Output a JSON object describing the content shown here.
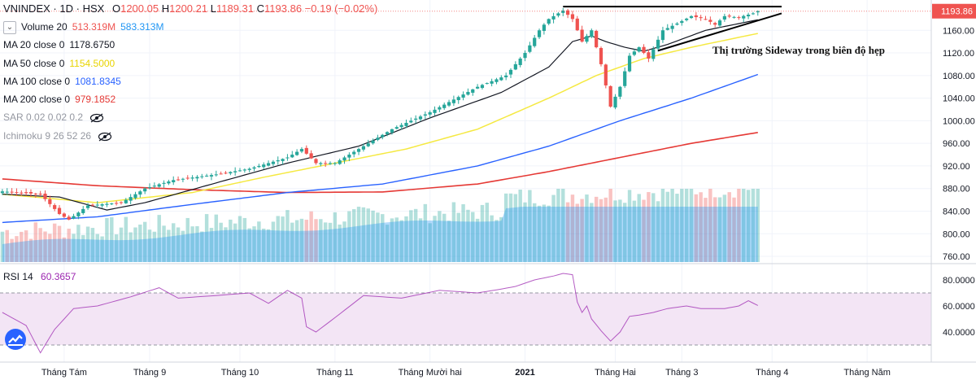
{
  "header": {
    "symbol": "VNINDEX",
    "sep1": "·",
    "interval": "1D",
    "sep2": "·",
    "exchange": "HSX",
    "open_label": "O",
    "open": "1200.05",
    "high_label": "H",
    "high": "1200.21",
    "low_label": "L",
    "low": "1189.31",
    "close_label": "C",
    "close": "1193.86",
    "change": "−0.19 (−0.02%)"
  },
  "indicators": [
    {
      "name": "Volume 20",
      "values": [
        "513.319M",
        "583.313M"
      ],
      "colors": [
        "#ef5350",
        "#2196f3"
      ]
    },
    {
      "name": "MA 20 close 0",
      "values": [
        "1178.6750"
      ],
      "colors": [
        "#131722"
      ]
    },
    {
      "name": "MA 50 close 0",
      "values": [
        "1154.5000"
      ],
      "colors": [
        "#f5e942"
      ]
    },
    {
      "name": "MA 100 close 0",
      "values": [
        "1081.8345"
      ],
      "colors": [
        "#2962ff"
      ]
    },
    {
      "name": "MA 200 close 0",
      "values": [
        "979.1852"
      ],
      "colors": [
        "#e53935"
      ]
    },
    {
      "name": "SAR 0.02 0.02 0.2",
      "values": [],
      "colors": []
    },
    {
      "name": "Ichimoku 9 26 52 26",
      "values": [],
      "colors": []
    }
  ],
  "rsi_legend": {
    "name": "RSI 14",
    "value": "60.3657"
  },
  "annotation": "Thị trường Sideway trong biên độ hẹp",
  "colors": {
    "up": "#26a69a",
    "down": "#ef5350",
    "ma20": "#131722",
    "ma50": "#f5e942",
    "ma100": "#2962ff",
    "ma200": "#e53935",
    "rsi": "#9c27b0",
    "rsi_band": "#f3e5f5"
  },
  "chart_data": {
    "type": "candlestick",
    "title": "VNINDEX · 1D · HSX",
    "price_axis": {
      "ticks": [
        760,
        800,
        840,
        880,
        920,
        960,
        1000,
        1040,
        1080,
        1120,
        1160
      ],
      "labels": [
        "760.00",
        "800.00",
        "840.00",
        "880.00",
        "920.00",
        "960.00",
        "1000.00",
        "1040.00",
        "1080.00",
        "1120.00",
        "1160.00"
      ],
      "last_price": 1193.86,
      "last_price_label": "1193.86",
      "range": [
        750,
        1205
      ]
    },
    "rsi_axis": {
      "ticks": [
        40,
        60,
        80
      ],
      "labels": [
        "40.0000",
        "60.0000",
        "80.0000"
      ],
      "band": [
        30,
        70
      ],
      "range": [
        20,
        90
      ]
    },
    "x_labels": [
      "Tháng Tám",
      "Tháng 9",
      "Tháng 10",
      "Tháng 11",
      "Tháng Mười hai",
      "2021",
      "Tháng Hai",
      "Tháng 3",
      "Tháng 4",
      "Tháng Năm"
    ],
    "x_label_bar_index": [
      13,
      31,
      50,
      70,
      90,
      110,
      129,
      143,
      162,
      182
    ],
    "bars_in_view": 196,
    "candles_shown": 160,
    "price_path_nodes": [
      [
        0,
        875
      ],
      [
        8,
        870
      ],
      [
        12,
        835
      ],
      [
        14,
        825
      ],
      [
        18,
        850
      ],
      [
        25,
        855
      ],
      [
        30,
        880
      ],
      [
        36,
        895
      ],
      [
        45,
        905
      ],
      [
        52,
        915
      ],
      [
        60,
        935
      ],
      [
        63,
        950
      ],
      [
        66,
        925
      ],
      [
        70,
        925
      ],
      [
        75,
        950
      ],
      [
        82,
        985
      ],
      [
        90,
        1015
      ],
      [
        100,
        1060
      ],
      [
        106,
        1080
      ],
      [
        110,
        1120
      ],
      [
        113,
        1160
      ],
      [
        115,
        1180
      ],
      [
        118,
        1195
      ],
      [
        120,
        1180
      ],
      [
        122,
        1140
      ],
      [
        124,
        1160
      ],
      [
        126,
        1100
      ],
      [
        128,
        1025
      ],
      [
        130,
        1060
      ],
      [
        132,
        1115
      ],
      [
        134,
        1130
      ],
      [
        136,
        1110
      ],
      [
        139,
        1160
      ],
      [
        142,
        1172
      ],
      [
        145,
        1185
      ],
      [
        148,
        1180
      ],
      [
        150,
        1170
      ],
      [
        152,
        1185
      ],
      [
        155,
        1183
      ],
      [
        158,
        1190
      ],
      [
        159,
        1193.86
      ]
    ],
    "ma_nodes": {
      "ma20": [
        [
          0,
          870
        ],
        [
          12,
          865
        ],
        [
          22,
          842
        ],
        [
          30,
          855
        ],
        [
          45,
          890
        ],
        [
          60,
          925
        ],
        [
          75,
          955
        ],
        [
          90,
          1005
        ],
        [
          105,
          1050
        ],
        [
          115,
          1095
        ],
        [
          120,
          1140
        ],
        [
          124,
          1150
        ],
        [
          127,
          1140
        ],
        [
          131,
          1130
        ],
        [
          135,
          1123
        ],
        [
          140,
          1135
        ],
        [
          148,
          1160
        ],
        [
          159,
          1178.675
        ]
      ],
      "ma50": [
        [
          0,
          870
        ],
        [
          20,
          855
        ],
        [
          40,
          873
        ],
        [
          55,
          900
        ],
        [
          70,
          925
        ],
        [
          85,
          950
        ],
        [
          100,
          985
        ],
        [
          115,
          1040
        ],
        [
          125,
          1080
        ],
        [
          135,
          1110
        ],
        [
          145,
          1130
        ],
        [
          159,
          1154.5
        ]
      ],
      "ma100": [
        [
          0,
          820
        ],
        [
          20,
          830
        ],
        [
          40,
          852
        ],
        [
          60,
          873
        ],
        [
          80,
          888
        ],
        [
          100,
          920
        ],
        [
          115,
          955
        ],
        [
          130,
          1000
        ],
        [
          145,
          1040
        ],
        [
          159,
          1081.8345
        ]
      ],
      "ma200": [
        [
          0,
          897
        ],
        [
          20,
          885
        ],
        [
          40,
          878
        ],
        [
          60,
          873
        ],
        [
          80,
          874
        ],
        [
          100,
          888
        ],
        [
          115,
          910
        ],
        [
          130,
          935
        ],
        [
          145,
          960
        ],
        [
          159,
          979.1852
        ]
      ]
    },
    "rsi_nodes": [
      [
        0,
        55
      ],
      [
        5,
        45
      ],
      [
        8,
        24
      ],
      [
        11,
        42
      ],
      [
        15,
        58
      ],
      [
        20,
        60
      ],
      [
        27,
        67
      ],
      [
        33,
        74
      ],
      [
        37,
        66
      ],
      [
        45,
        68
      ],
      [
        52,
        70
      ],
      [
        56,
        62
      ],
      [
        60,
        72
      ],
      [
        63,
        66
      ],
      [
        64,
        44
      ],
      [
        66,
        40
      ],
      [
        70,
        51
      ],
      [
        76,
        68
      ],
      [
        84,
        66
      ],
      [
        92,
        72
      ],
      [
        100,
        70
      ],
      [
        105,
        73
      ],
      [
        108,
        75
      ],
      [
        112,
        80
      ],
      [
        116,
        83
      ],
      [
        118,
        85
      ],
      [
        120,
        84
      ],
      [
        121,
        63
      ],
      [
        122,
        55
      ],
      [
        123,
        60
      ],
      [
        124,
        50
      ],
      [
        126,
        41
      ],
      [
        128,
        33
      ],
      [
        130,
        40
      ],
      [
        132,
        52
      ],
      [
        134,
        53
      ],
      [
        137,
        55
      ],
      [
        140,
        58
      ],
      [
        144,
        60
      ],
      [
        147,
        58
      ],
      [
        152,
        58
      ],
      [
        155,
        60
      ],
      [
        157,
        64
      ],
      [
        159,
        60.3657
      ]
    ],
    "volume": {
      "ma20_label": "513.319M",
      "ma_label": "583.313M"
    },
    "trendlines": [
      {
        "name": "resistance",
        "from": [
          118,
          1202
        ],
        "to": [
          164,
          1202
        ]
      },
      {
        "name": "rising-support",
        "from": [
          138,
          1124
        ],
        "to": [
          164,
          1190
        ]
      }
    ]
  }
}
